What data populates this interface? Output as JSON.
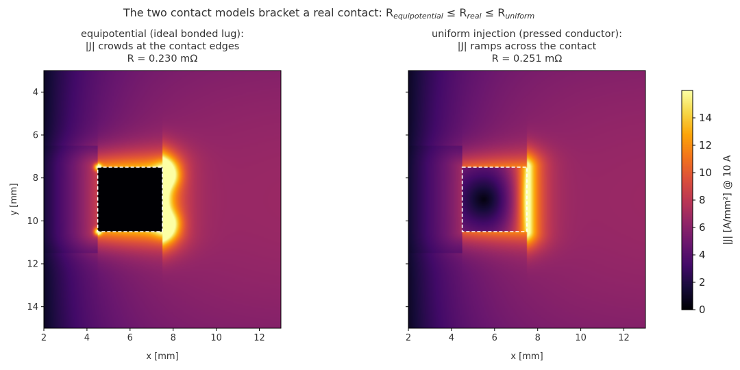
{
  "figure": {
    "title_parts": {
      "prefix": "The two contact models bracket a real contact:  R",
      "sub1": "equipotential",
      "mid1": " ≤ R",
      "sub2": "real",
      "mid2": " ≤ R",
      "sub3": "uniform"
    }
  },
  "colors": {
    "colormap": "inferno",
    "contact_outline": "#ffffff"
  },
  "chart_data": [
    {
      "type": "heatmap",
      "title_lines": [
        "equipotential (ideal bonded lug):",
        "|J| crowds at the contact edges",
        "R = 0.230 mΩ"
      ],
      "xlabel": "x [mm]",
      "ylabel": "y [mm]",
      "xlim": [
        2,
        13
      ],
      "ylim": [
        15,
        3
      ],
      "xticks": [
        2,
        4,
        6,
        8,
        10,
        12
      ],
      "yticks": [
        4,
        6,
        8,
        10,
        12,
        14
      ],
      "y_inverted": true,
      "contact_region": {
        "x": [
          4.5,
          7.5
        ],
        "y": [
          7.5,
          10.5
        ],
        "outline": "dashed"
      },
      "model": "equipotential",
      "value_range": [
        0,
        16
      ],
      "resistance_mohm": 0.23
    },
    {
      "type": "heatmap",
      "title_lines": [
        "uniform injection (pressed conductor):",
        "|J| ramps across the contact",
        "R = 0.251 mΩ"
      ],
      "xlabel": "x [mm]",
      "ylabel": "",
      "xlim": [
        2,
        13
      ],
      "ylim": [
        15,
        3
      ],
      "xticks": [
        2,
        4,
        6,
        8,
        10,
        12
      ],
      "yticks": [
        4,
        6,
        8,
        10,
        12,
        14
      ],
      "y_tick_labels_shown": false,
      "y_inverted": true,
      "contact_region": {
        "x": [
          4.5,
          7.5
        ],
        "y": [
          7.5,
          10.5
        ],
        "outline": "dashed"
      },
      "model": "uniform",
      "value_range": [
        0,
        16
      ],
      "resistance_mohm": 0.251
    }
  ],
  "colorbar": {
    "label": "|J| [A/mm²] @ 10 A",
    "range": [
      0,
      16
    ],
    "ticks": [
      0,
      2,
      4,
      6,
      8,
      10,
      12,
      14
    ],
    "colormap": "inferno"
  }
}
